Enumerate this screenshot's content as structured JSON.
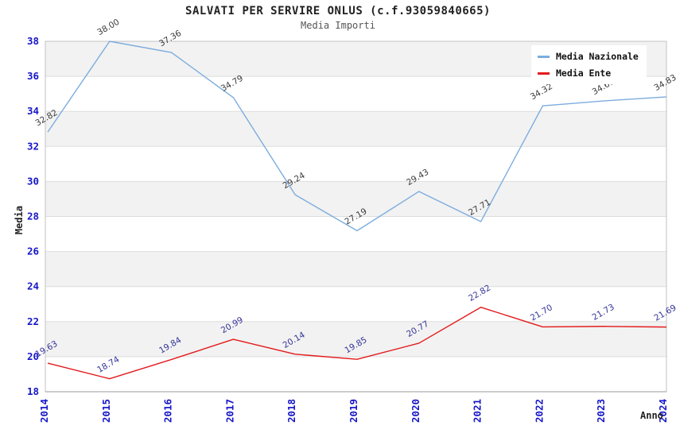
{
  "chart_data": {
    "type": "line",
    "title": "SALVATI PER SERVIRE ONLUS (c.f.93059840665)",
    "subtitle": "Media Importi",
    "xlabel": "Anno",
    "ylabel": "Media",
    "x": [
      2014,
      2015,
      2016,
      2017,
      2018,
      2019,
      2020,
      2021,
      2022,
      2023,
      2024
    ],
    "ylim": [
      18,
      38
    ],
    "ytick_step": 2,
    "grid": "horizontal-bands",
    "legend_position": "top-right",
    "band_colors": [
      "#ffffff",
      "#f2f2f2"
    ],
    "gridline_color": "#dddddd",
    "plot_border_color": "#c2c2c2",
    "axis_tick_label_color": "#1616c8",
    "series": [
      {
        "name": "Media Nazionale",
        "color": "#7cacde",
        "label_color": "#3a3a3a",
        "values": [
          32.82,
          38.0,
          37.36,
          34.79,
          29.24,
          27.19,
          29.43,
          27.71,
          34.32,
          34.6,
          34.83
        ]
      },
      {
        "name": "Media Ente",
        "color": "#e31a1c",
        "label_color": "#333399",
        "values": [
          19.63,
          18.74,
          19.84,
          20.99,
          20.14,
          19.85,
          20.77,
          22.82,
          21.7,
          21.73,
          21.69
        ]
      }
    ]
  }
}
